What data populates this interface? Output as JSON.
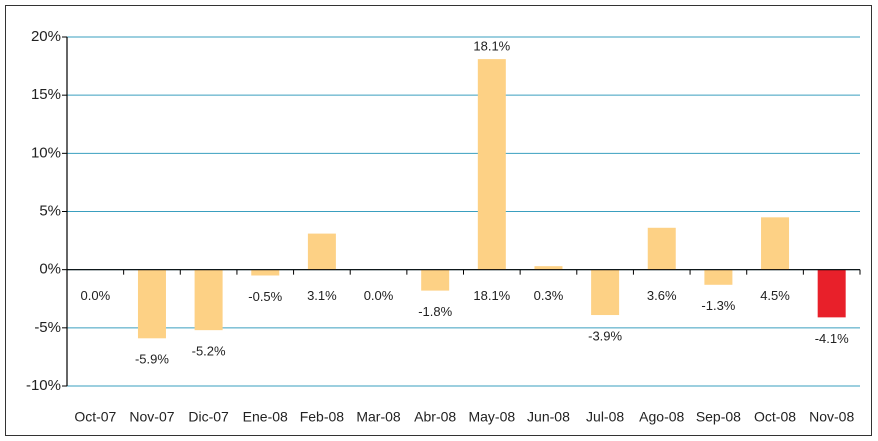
{
  "chart_data": {
    "type": "bar",
    "categories": [
      "Oct-07",
      "Nov-07",
      "Dic-07",
      "Ene-08",
      "Feb-08",
      "Mar-08",
      "Abr-08",
      "May-08",
      "Jun-08",
      "Jul-08",
      "Ago-08",
      "Sep-08",
      "Oct-08",
      "Nov-08"
    ],
    "values": [
      0.0,
      -5.9,
      -5.2,
      -0.5,
      3.1,
      0.0,
      -1.8,
      18.1,
      0.3,
      -3.9,
      3.6,
      -1.3,
      4.5,
      -4.1
    ],
    "value_labels": [
      "0.0%",
      "-5.9%",
      "-5.2%",
      "-0.5%",
      "3.1%",
      "0.0%",
      "-1.8%",
      "18.1%",
      "0.3%",
      "-3.9%",
      "3.6%",
      "-1.3%",
      "4.5%",
      "-4.1%"
    ],
    "colors": [
      "#fdd185",
      "#fdd185",
      "#fdd185",
      "#fdd185",
      "#fdd185",
      "#fdd185",
      "#fdd185",
      "#fdd185",
      "#fdd185",
      "#fdd185",
      "#fdd185",
      "#fdd185",
      "#fdd185",
      "#e8202a"
    ],
    "ylim": [
      -10,
      20
    ],
    "yticks": [
      {
        "value": -10,
        "label": "-10%"
      },
      {
        "value": -5,
        "label": "-5%"
      },
      {
        "value": 0,
        "label": "0%"
      },
      {
        "value": 5,
        "label": "5%"
      },
      {
        "value": 10,
        "label": "10%"
      },
      {
        "value": 15,
        "label": "15%"
      },
      {
        "value": 20,
        "label": "20%"
      }
    ],
    "grid": true,
    "grid_color": "#3a9fbf"
  }
}
